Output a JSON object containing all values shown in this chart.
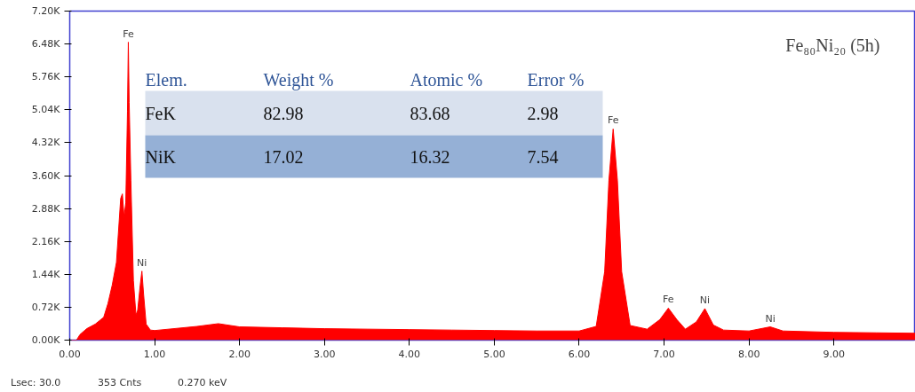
{
  "chart_data": {
    "type": "area",
    "title": "Fe₈₀Ni₂₀ (5h)",
    "color": "#ff0000",
    "grid": false,
    "x": [
      0.0,
      0.08,
      0.12,
      0.2,
      0.3,
      0.4,
      0.45,
      0.5,
      0.55,
      0.6,
      0.62,
      0.64,
      0.66,
      0.68,
      0.69,
      0.7,
      0.72,
      0.75,
      0.78,
      0.8,
      0.83,
      0.85,
      0.87,
      0.9,
      0.95,
      1.0,
      1.5,
      1.75,
      2.0,
      2.5,
      3.0,
      3.5,
      4.0,
      4.5,
      5.0,
      5.5,
      6.0,
      6.2,
      6.3,
      6.35,
      6.4,
      6.45,
      6.5,
      6.6,
      6.8,
      6.95,
      7.05,
      7.15,
      7.25,
      7.38,
      7.48,
      7.58,
      7.7,
      8.0,
      8.25,
      8.4,
      9.0,
      9.5,
      9.96
    ],
    "values": [
      0,
      0,
      120,
      250,
      350,
      500,
      800,
      1200,
      1700,
      3100,
      3200,
      2700,
      3000,
      5000,
      6520,
      5200,
      3500,
      1300,
      550,
      650,
      1200,
      1510,
      1000,
      350,
      220,
      210,
      300,
      360,
      290,
      270,
      250,
      240,
      230,
      220,
      210,
      200,
      200,
      300,
      1500,
      3500,
      4620,
      3500,
      1500,
      320,
      240,
      450,
      700,
      450,
      240,
      400,
      690,
      330,
      220,
      200,
      290,
      200,
      170,
      160,
      150
    ],
    "xlim": [
      0,
      9.96
    ],
    "ylim": [
      0,
      7200
    ],
    "xticks": [
      {
        "value": 0,
        "label": "0.00"
      },
      {
        "value": 1,
        "label": "1.00"
      },
      {
        "value": 2,
        "label": "2.00"
      },
      {
        "value": 3,
        "label": "3.00"
      },
      {
        "value": 4,
        "label": "4.00"
      },
      {
        "value": 5,
        "label": "5.00"
      },
      {
        "value": 6,
        "label": "6.00"
      },
      {
        "value": 7,
        "label": "7.00"
      },
      {
        "value": 8,
        "label": "8.00"
      },
      {
        "value": 9,
        "label": "9.00"
      }
    ],
    "yticks": [
      {
        "value": 0,
        "label": "0.00K"
      },
      {
        "value": 720,
        "label": "0.72K"
      },
      {
        "value": 1440,
        "label": "1.44K"
      },
      {
        "value": 2160,
        "label": "2.16K"
      },
      {
        "value": 2880,
        "label": "2.88K"
      },
      {
        "value": 3600,
        "label": "3.60K"
      },
      {
        "value": 4320,
        "label": "4.32K"
      },
      {
        "value": 5040,
        "label": "5.04K"
      },
      {
        "value": 5760,
        "label": "5.76K"
      },
      {
        "value": 6480,
        "label": "6.48K"
      },
      {
        "value": 7200,
        "label": "7.20K"
      }
    ],
    "annotations": [
      {
        "text": "Fe",
        "x": 0.69,
        "y": 6520
      },
      {
        "text": "Ni",
        "x": 0.85,
        "y": 1510
      },
      {
        "text": "Fe",
        "x": 6.4,
        "y": 4620
      },
      {
        "text": "Fe",
        "x": 7.05,
        "y": 700
      },
      {
        "text": "Ni",
        "x": 7.48,
        "y": 690
      },
      {
        "text": "Ni",
        "x": 8.25,
        "y": 290
      },
      "Elem.\tWeight %\tAtomic %\tError %",
      "FeK\t82.98\t83.68\t2.98",
      "NiK\t17.02\t16.32\t7.54",
      "Lsec: 30.0\t353 Cnts\t0.270 keV"
    ]
  }
}
